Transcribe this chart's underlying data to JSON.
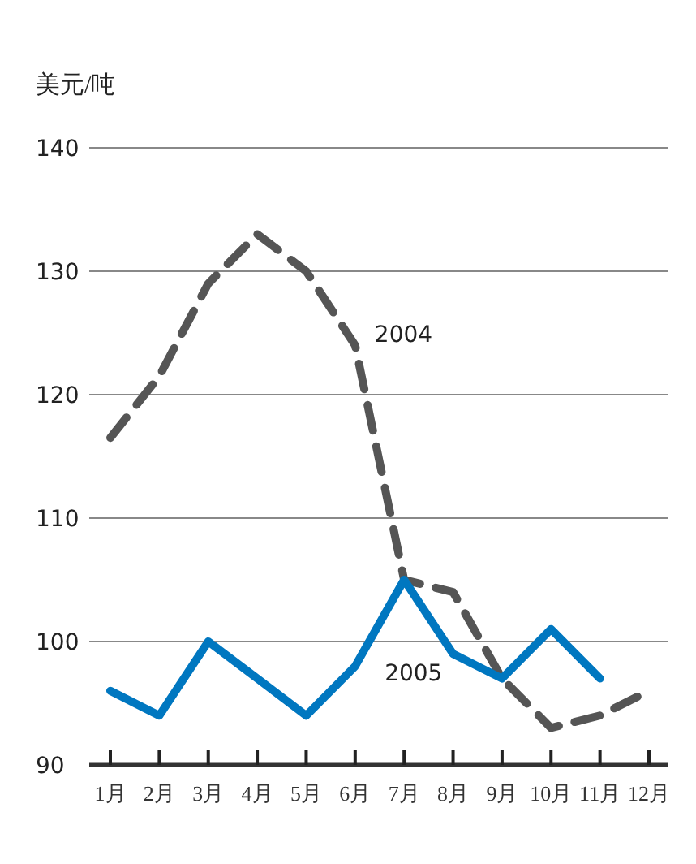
{
  "chart_data": {
    "type": "line",
    "ylabel": "美元/吨",
    "categories": [
      "1月",
      "2月",
      "3月",
      "4月",
      "5月",
      "6月",
      "7月",
      "8月",
      "9月",
      "10月",
      "11月",
      "12月"
    ],
    "ylim": [
      90,
      140
    ],
    "yticks": [
      90,
      100,
      110,
      120,
      130,
      140
    ],
    "grid": "y",
    "legend": false,
    "marker": "none",
    "series": [
      {
        "name": "2004",
        "color": "#555555",
        "line_style": "dashed",
        "values": [
          116.5,
          121.5,
          129,
          133,
          130,
          124,
          105,
          104,
          97,
          93,
          94,
          96
        ]
      },
      {
        "name": "2005",
        "color": "#0077c0",
        "line_style": "solid",
        "values": [
          96,
          94,
          100,
          97,
          94,
          98,
          105,
          99,
          97,
          101,
          97,
          null
        ]
      }
    ]
  }
}
